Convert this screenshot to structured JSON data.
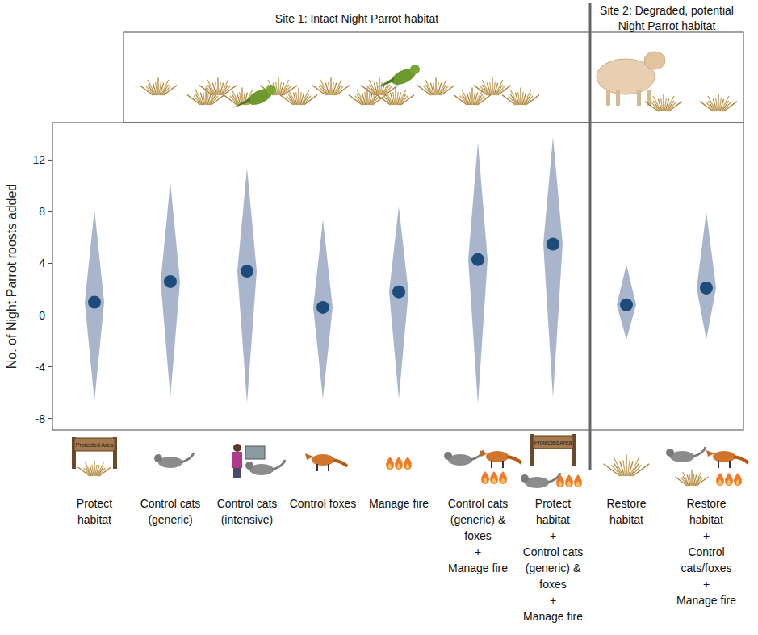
{
  "chart_data": {
    "type": "dotplot",
    "y_label": "No. of Night Parrot roosts added",
    "groups": [
      {
        "title": "Site 1: Intact Night Parrot habitat",
        "categories": [
          "Protect habitat",
          "Control cats (generic)",
          "Control cats (intensive)",
          "Control foxes",
          "Manage fire",
          "Control cats (generic) & foxes + Manage fire",
          "Protect habitat + Control cats (generic) & foxes + Manage fire"
        ]
      },
      {
        "title": "Site 2: Degraded, potential Night Parrot habitat",
        "categories": [
          "Restore habitat",
          "Restore habitat + Control cats/foxes + Manage fire"
        ]
      }
    ],
    "values": [
      1.0,
      2.6,
      3.4,
      0.6,
      1.8,
      4.3,
      5.5,
      0.8,
      2.1
    ],
    "lower": [
      -6.7,
      -6.4,
      -6.8,
      -6.5,
      -6.5,
      -6.9,
      -6.4,
      -1.9,
      -1.9
    ],
    "upper": [
      8.2,
      10.3,
      11.4,
      7.4,
      8.4,
      13.4,
      13.8,
      3.9,
      8.0
    ],
    "baseline": 0,
    "annotations": [
      "Protected Area"
    ],
    "color": "#1d4b7a",
    "ylim": [
      -8.9,
      14.9
    ],
    "yticks": [
      -8,
      -4,
      0,
      4,
      8,
      12
    ],
    "grid": false
  }
}
